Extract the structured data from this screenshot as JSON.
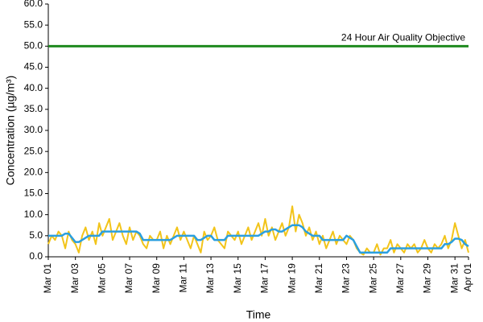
{
  "chart_data": {
    "type": "line",
    "y_label": "Concentration (µg/m³)",
    "x_label": "Time",
    "categories": [
      "Mar 01",
      null,
      null,
      null,
      null,
      null,
      null,
      null,
      "Mar 03",
      null,
      null,
      null,
      null,
      null,
      null,
      null,
      "Mar 05",
      null,
      null,
      null,
      null,
      null,
      null,
      null,
      "Mar 07",
      null,
      null,
      null,
      null,
      null,
      null,
      null,
      "Mar 09",
      null,
      null,
      null,
      null,
      null,
      null,
      null,
      "Mar 11",
      null,
      null,
      null,
      null,
      null,
      null,
      null,
      "Mar 13",
      null,
      null,
      null,
      null,
      null,
      null,
      null,
      "Mar 15",
      null,
      null,
      null,
      null,
      null,
      null,
      null,
      "Mar 17",
      null,
      null,
      null,
      null,
      null,
      null,
      null,
      "Mar 19",
      null,
      null,
      null,
      null,
      null,
      null,
      null,
      "Mar 21",
      null,
      null,
      null,
      null,
      null,
      null,
      null,
      "Mar 23",
      null,
      null,
      null,
      null,
      null,
      null,
      null,
      "Mar 25",
      null,
      null,
      null,
      null,
      null,
      null,
      null,
      "Mar 27",
      null,
      null,
      null,
      null,
      null,
      null,
      null,
      "Mar 29",
      null,
      null,
      null,
      null,
      null,
      null,
      null,
      "Mar 31",
      null,
      null,
      null,
      "Apr 01"
    ],
    "series": [
      {
        "color": "#f2c41a",
        "width": 2,
        "values": [
          3,
          5,
          4,
          6,
          5,
          2,
          6,
          4,
          3,
          1,
          5,
          7,
          4,
          6,
          3,
          8,
          5,
          7,
          9,
          4,
          6,
          8,
          5,
          3,
          7,
          4,
          6,
          5,
          3,
          2,
          5,
          4,
          4,
          6,
          2,
          5,
          3,
          5,
          7,
          4,
          6,
          4,
          2,
          5,
          3,
          1,
          6,
          4,
          5,
          7,
          4,
          3,
          2,
          6,
          5,
          4,
          6,
          3,
          5,
          7,
          4,
          6,
          8,
          5,
          9,
          5,
          7,
          4,
          6,
          8,
          5,
          7,
          12,
          6,
          10,
          8,
          5,
          7,
          4,
          6,
          3,
          5,
          2,
          4,
          6,
          3,
          5,
          4,
          3,
          5,
          4,
          2,
          1,
          0.5,
          2,
          1,
          1,
          3,
          0.5,
          2,
          2,
          4,
          1,
          3,
          2,
          1,
          3,
          2,
          3,
          1,
          2,
          4,
          2,
          1,
          3,
          2,
          3,
          5,
          2,
          4,
          8,
          5,
          2,
          4,
          1
        ]
      },
      {
        "color": "#2a9fe0",
        "width": 2.5,
        "values": [
          5,
          5,
          5,
          5,
          5,
          5.5,
          5.5,
          4.5,
          3.5,
          3.5,
          4,
          4.5,
          5,
          5,
          5,
          5,
          6,
          6,
          6,
          6,
          6,
          6,
          6,
          6,
          6,
          6,
          6,
          5.5,
          4,
          4,
          4,
          4,
          4,
          4,
          4,
          4,
          4,
          4.5,
          5,
          5,
          5,
          5,
          5,
          5,
          4,
          4,
          4.5,
          5,
          5,
          4,
          4,
          4,
          4,
          5,
          5,
          5,
          5,
          5,
          5,
          5,
          5,
          5,
          5,
          5.5,
          6,
          6,
          6.5,
          6.5,
          6,
          6,
          6.5,
          7,
          7.5,
          7.5,
          7.5,
          7,
          6,
          5.5,
          5,
          5,
          5,
          4,
          4,
          4,
          4,
          4,
          4,
          4,
          5,
          4.5,
          4,
          2.5,
          1,
          1,
          1,
          1,
          1,
          1,
          1,
          1,
          1,
          2,
          2,
          2,
          2,
          2,
          2,
          2,
          2,
          2,
          2,
          2,
          2,
          2,
          2,
          2,
          2,
          3,
          3,
          3.5,
          4.3,
          4.3,
          4,
          3,
          2.5
        ]
      }
    ],
    "objective": {
      "label": "24 Hour Air Quality Objective",
      "value": 50,
      "color": "#1e8a1e"
    },
    "ylim": [
      0,
      60
    ],
    "yticks": [
      {
        "value": 0,
        "label": "0.0"
      },
      {
        "value": 5,
        "label": "5.0"
      },
      {
        "value": 10,
        "label": "10.0"
      },
      {
        "value": 15,
        "label": "15.0"
      },
      {
        "value": 20,
        "label": "20.0"
      },
      {
        "value": 25,
        "label": "25.0"
      },
      {
        "value": 30,
        "label": "30.0"
      },
      {
        "value": 35,
        "label": "35.0"
      },
      {
        "value": 40,
        "label": "40.0"
      },
      {
        "value": 45,
        "label": "45.0"
      },
      {
        "value": 50,
        "label": "50.0"
      },
      {
        "value": 55,
        "label": "55.0"
      },
      {
        "value": 60,
        "label": "60.0"
      }
    ]
  }
}
